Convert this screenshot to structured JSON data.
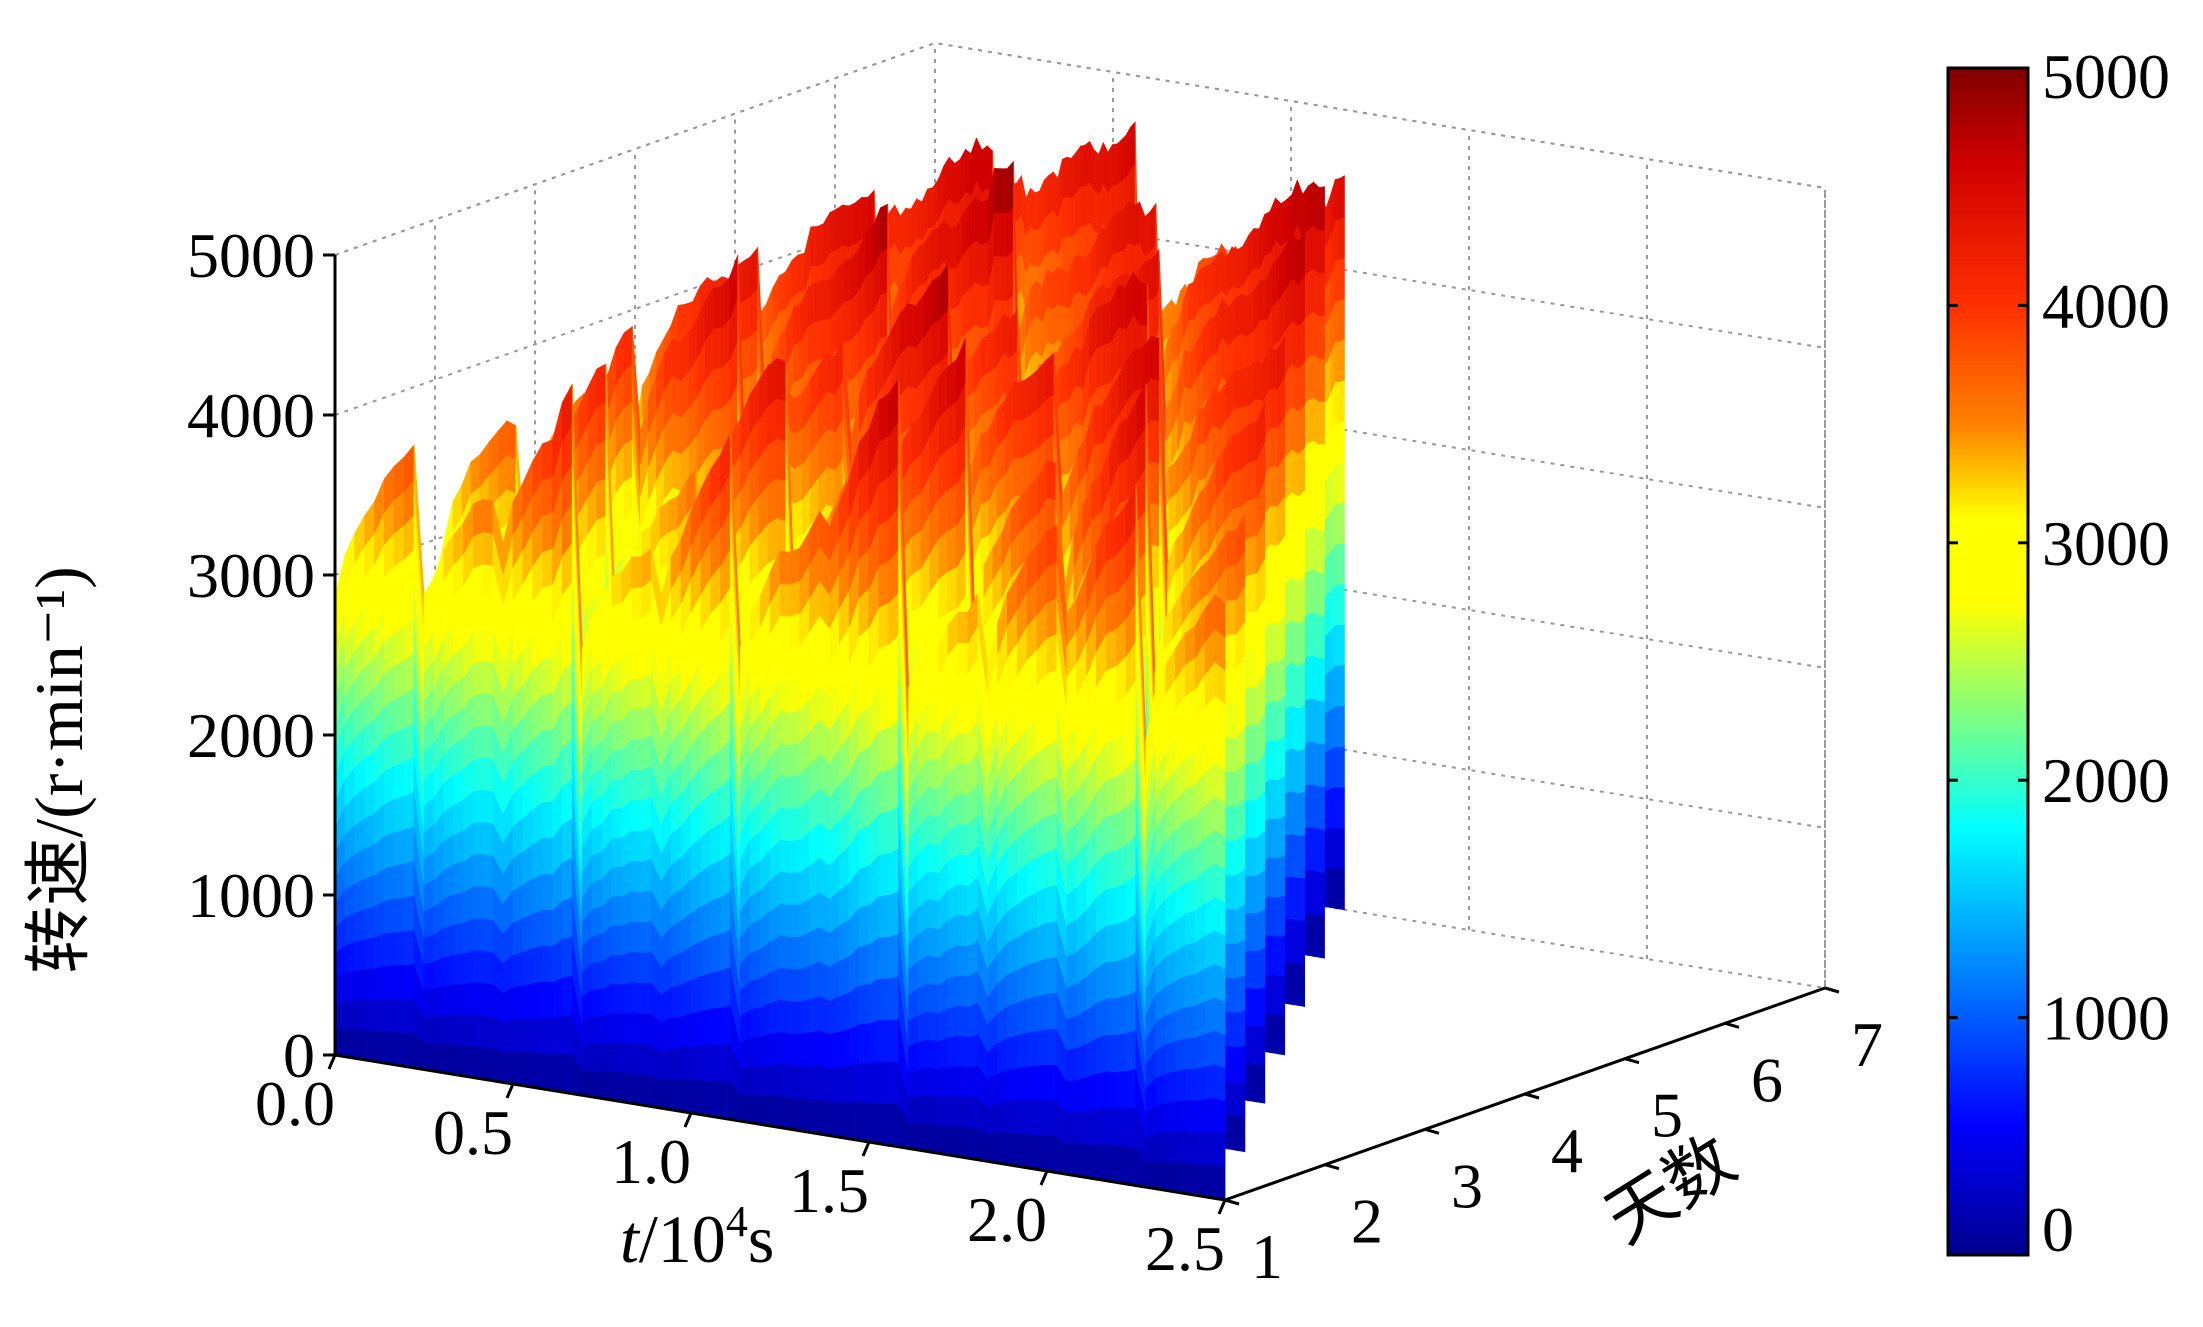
{
  "chart_data": {
    "type": "surface3d",
    "title": "",
    "zlabel": "转速/(r·min⁻¹)",
    "xlabel": {
      "italic": "t",
      "rest": "/10",
      "sup": "4",
      "unit": "s"
    },
    "ylabel": "天数",
    "z_ticks": [
      "0",
      "1000",
      "2000",
      "3000",
      "4000",
      "5000"
    ],
    "x_ticks": [
      "0.0",
      "0.5",
      "1.0",
      "1.5",
      "2.0",
      "2.5"
    ],
    "y_ticks": [
      "1",
      "2",
      "3",
      "4",
      "5",
      "6",
      "7"
    ],
    "zlim": [
      0,
      5000
    ],
    "xlim": [
      0.0,
      2.5
    ],
    "ylim": [
      1,
      7
    ],
    "grid": true,
    "colormap": "jet",
    "colorbar": {
      "ticks": [
        "0",
        "1000",
        "2000",
        "3000",
        "4000",
        "5000"
      ],
      "range": [
        0,
        5000
      ],
      "placement": "right"
    },
    "days": [
      {
        "day": 1,
        "peaks_rpm": [
          3950,
          3700,
          4400,
          3600,
          4300,
          3900,
          4800,
          3600,
          4100,
          4500,
          3800
        ]
      },
      {
        "day": 2,
        "peaks_rpm": [
          3900,
          4300,
          3800,
          4600,
          4100,
          4900,
          4200,
          4700,
          4000
        ]
      },
      {
        "day": 3,
        "peaks_rpm": [
          4200,
          4800,
          4400,
          5000,
          4500,
          4700,
          4300
        ]
      },
      {
        "day": 4,
        "peaks_rpm": [
          4600,
          4900,
          4400,
          4800,
          4500
        ]
      },
      {
        "day": 5,
        "peaks_rpm": [
          4700,
          5000,
          4600,
          4800
        ]
      },
      {
        "day": 6,
        "peaks_rpm": [
          4800,
          4600,
          4900
        ]
      },
      {
        "day": 7,
        "peaks_rpm": [
          4700,
          4500
        ]
      }
    ],
    "colors": {
      "dark_blue": "#00008f",
      "blue": "#0040ff",
      "cyan": "#00e0ff",
      "yellow": "#ffff00",
      "orange": "#ff8000",
      "red": "#ff2000",
      "dark_red": "#800000"
    }
  }
}
